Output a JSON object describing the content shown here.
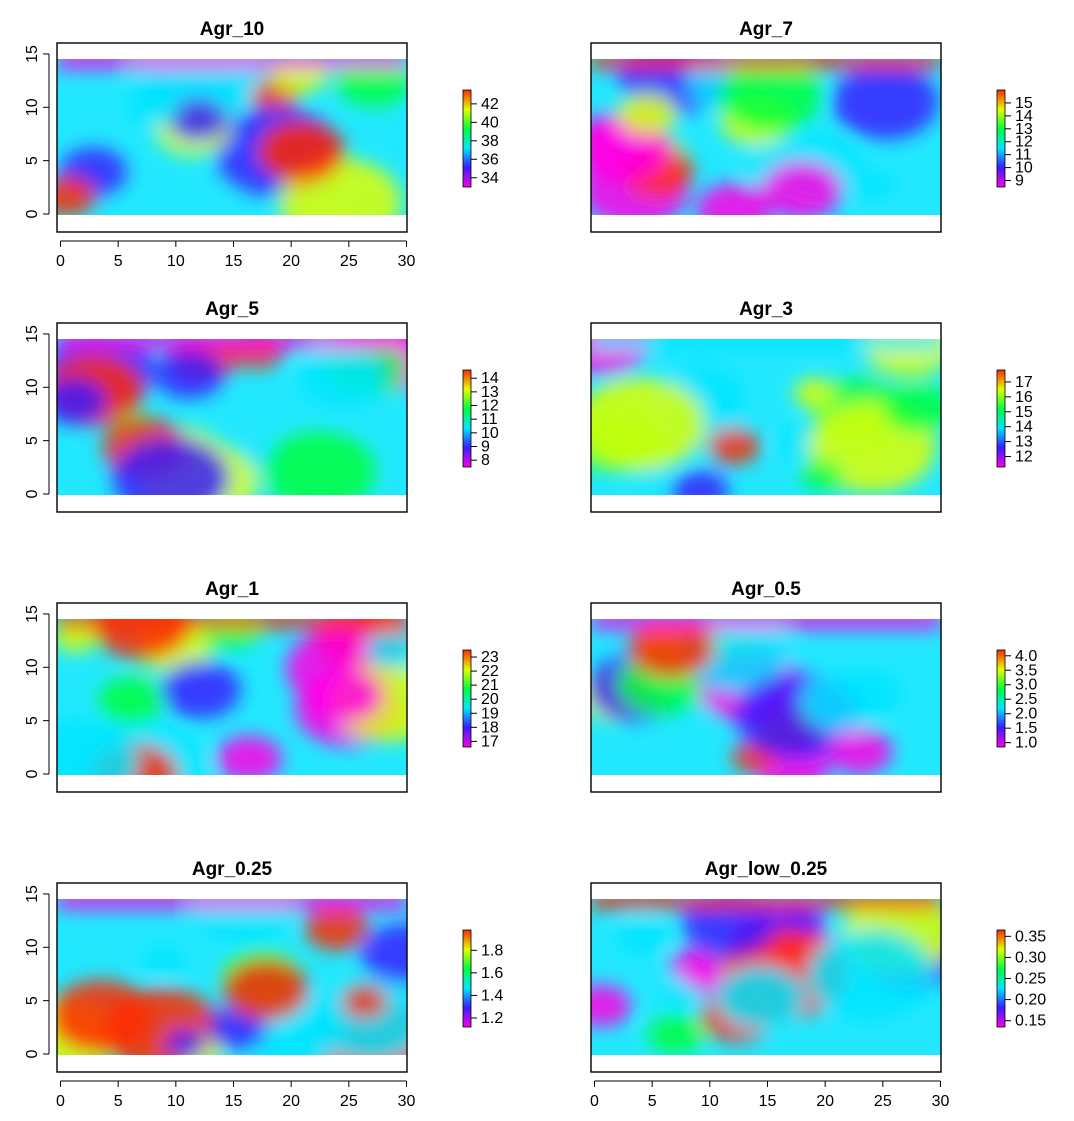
{
  "chart_data": [
    {
      "type": "heatmap",
      "title": "Agr_10",
      "xlim": [
        0,
        30
      ],
      "ylim": [
        0,
        15
      ],
      "x_ticks": [
        "0",
        "5",
        "10",
        "15",
        "20",
        "25",
        "30"
      ],
      "y_ticks": [
        "0",
        "5",
        "10",
        "15"
      ],
      "color_scale": "rainbow: magenta-blue-cyan-green-yellow-red (low to high)",
      "zlim": [
        33,
        43.5
      ],
      "colorbar_ticks": [
        "34",
        "36",
        "38",
        "40",
        "42"
      ],
      "colorbar_values": [
        34,
        36,
        38,
        40,
        42
      ]
    },
    {
      "type": "heatmap",
      "title": "Agr_7",
      "xlim": [
        0,
        30
      ],
      "ylim": [
        0,
        15
      ],
      "color_scale": "rainbow: magenta-blue-cyan-green-yellow-red (low to high)",
      "zlim": [
        8.5,
        16
      ],
      "colorbar_ticks": [
        "9",
        "10",
        "11",
        "12",
        "13",
        "14",
        "15"
      ],
      "colorbar_values": [
        9,
        10,
        11,
        12,
        13,
        14,
        15
      ]
    },
    {
      "type": "heatmap",
      "title": "Agr_5",
      "xlim": [
        0,
        30
      ],
      "ylim": [
        0,
        15
      ],
      "y_ticks": [
        "0",
        "5",
        "10",
        "15"
      ],
      "color_scale": "rainbow: magenta-blue-cyan-green-yellow-red (low to high)",
      "zlim": [
        7.5,
        14.6
      ],
      "colorbar_ticks": [
        "8",
        "9",
        "10",
        "11",
        "12",
        "13",
        "14"
      ],
      "colorbar_values": [
        8,
        9,
        10,
        11,
        12,
        13,
        14
      ]
    },
    {
      "type": "heatmap",
      "title": "Agr_3",
      "xlim": [
        0,
        30
      ],
      "ylim": [
        0,
        15
      ],
      "color_scale": "rainbow: magenta-blue-cyan-green-yellow-red (low to high)",
      "zlim": [
        11.3,
        17.8
      ],
      "colorbar_ticks": [
        "12",
        "13",
        "14",
        "15",
        "16",
        "17"
      ],
      "colorbar_values": [
        12,
        13,
        14,
        15,
        16,
        17
      ]
    },
    {
      "type": "heatmap",
      "title": "Agr_1",
      "xlim": [
        0,
        30
      ],
      "ylim": [
        0,
        15
      ],
      "y_ticks": [
        "0",
        "5",
        "10",
        "15"
      ],
      "color_scale": "rainbow: magenta-blue-cyan-green-yellow-red (low to high)",
      "zlim": [
        16.6,
        23.5
      ],
      "colorbar_ticks": [
        "17",
        "18",
        "19",
        "20",
        "21",
        "22",
        "23"
      ],
      "colorbar_values": [
        17,
        18,
        19,
        20,
        21,
        22,
        23
      ]
    },
    {
      "type": "heatmap",
      "title": "Agr_0.5",
      "xlim": [
        0,
        30
      ],
      "ylim": [
        0,
        15
      ],
      "color_scale": "rainbow: magenta-blue-cyan-green-yellow-red (low to high)",
      "zlim": [
        0.85,
        4.2
      ],
      "colorbar_ticks": [
        "1.0",
        "1.5",
        "2.0",
        "2.5",
        "3.0",
        "3.5",
        "4.0"
      ],
      "colorbar_values": [
        1.0,
        1.5,
        2.0,
        2.5,
        3.0,
        3.5,
        4.0
      ]
    },
    {
      "type": "heatmap",
      "title": "Agr_0.25",
      "xlim": [
        0,
        30
      ],
      "ylim": [
        0,
        15
      ],
      "x_ticks": [
        "0",
        "5",
        "10",
        "15",
        "20",
        "25",
        "30"
      ],
      "y_ticks": [
        "0",
        "5",
        "10",
        "15"
      ],
      "color_scale": "rainbow: magenta-blue-cyan-green-yellow-red (low to high)",
      "zlim": [
        1.12,
        1.98
      ],
      "colorbar_ticks": [
        "1.2",
        "1.4",
        "1.6",
        "1.8"
      ],
      "colorbar_values": [
        1.2,
        1.4,
        1.6,
        1.8
      ]
    },
    {
      "type": "heatmap",
      "title": "Agr_low_0.25",
      "xlim": [
        0,
        30
      ],
      "ylim": [
        0,
        15
      ],
      "x_ticks": [
        "0",
        "5",
        "10",
        "15",
        "20",
        "25",
        "30"
      ],
      "color_scale": "rainbow: magenta-blue-cyan-green-yellow-red (low to high)",
      "zlim": [
        0.135,
        0.365
      ],
      "colorbar_ticks": [
        "0.15",
        "0.20",
        "0.25",
        "0.30",
        "0.35"
      ],
      "colorbar_values": [
        0.15,
        0.2,
        0.25,
        0.3,
        0.35
      ]
    }
  ]
}
